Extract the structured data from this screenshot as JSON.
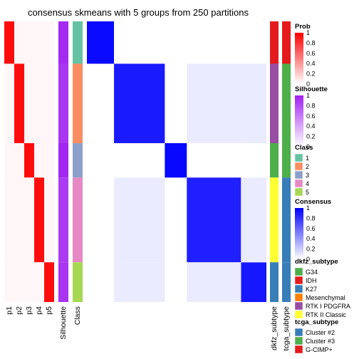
{
  "chart_data": {
    "type": "heatmap",
    "title": "consensus skmeans with 5 groups from 250 partitions",
    "prob_columns": [
      "p1",
      "p2",
      "p3",
      "p4",
      "p5"
    ],
    "silhouette_label": "Silhouette",
    "class_label": "Class",
    "annotation_columns": [
      "dkfz_subtype",
      "tcga_subtype"
    ],
    "groups": [
      {
        "class": "1",
        "size": 16,
        "silhouette": 0.96
      },
      {
        "class": "2",
        "size": 30,
        "silhouette": 0.9
      },
      {
        "class": "3",
        "size": 13,
        "silhouette": 0.97
      },
      {
        "class": "4",
        "size": 32,
        "silhouette": 0.88
      },
      {
        "class": "5",
        "size": 15,
        "silhouette": 0.91
      }
    ],
    "legends": {
      "prob": {
        "title": "Prob",
        "ticks": [
          "1",
          "0.8",
          "0.6",
          "0.4",
          "0.2",
          "0"
        ]
      },
      "silhouette": {
        "title": "Silhouette",
        "ticks": [
          "1",
          "0.8",
          "0.6",
          "0.4",
          "0.2",
          "0"
        ]
      },
      "class": {
        "title": "Class",
        "labels": [
          "1",
          "2",
          "3",
          "4",
          "5"
        ],
        "colors": [
          "#66C2A5",
          "#FC8D62",
          "#8DA0CB",
          "#E78AC3",
          "#A6D854"
        ]
      },
      "consensus": {
        "title": "Consensus",
        "ticks": [
          "1",
          "0.8",
          "0.6",
          "0.4",
          "0.2",
          "0"
        ]
      },
      "dkfz_subtype": {
        "title": "dkfz_subtype",
        "labels": [
          "G34",
          "IDH",
          "K27",
          "Mesenchymal",
          "RTK I PDGFRA",
          "RTK II Classic"
        ],
        "colors": [
          "#4DAF4A",
          "#E41A1C",
          "#377EB8",
          "#FF7F00",
          "#984EA3",
          "#FFFF33"
        ]
      },
      "tcga_subtype": {
        "title": "tcga_subtype",
        "labels": [
          "Cluster #2",
          "Cluster #3",
          "G-CIMP+"
        ],
        "colors": [
          "#377EB8",
          "#4DAF4A",
          "#E41A1C"
        ]
      }
    },
    "colors": {
      "prob_high": "#FF0000",
      "silhouette_high": "#A020F0",
      "consensus_high": "#0000FF"
    }
  }
}
